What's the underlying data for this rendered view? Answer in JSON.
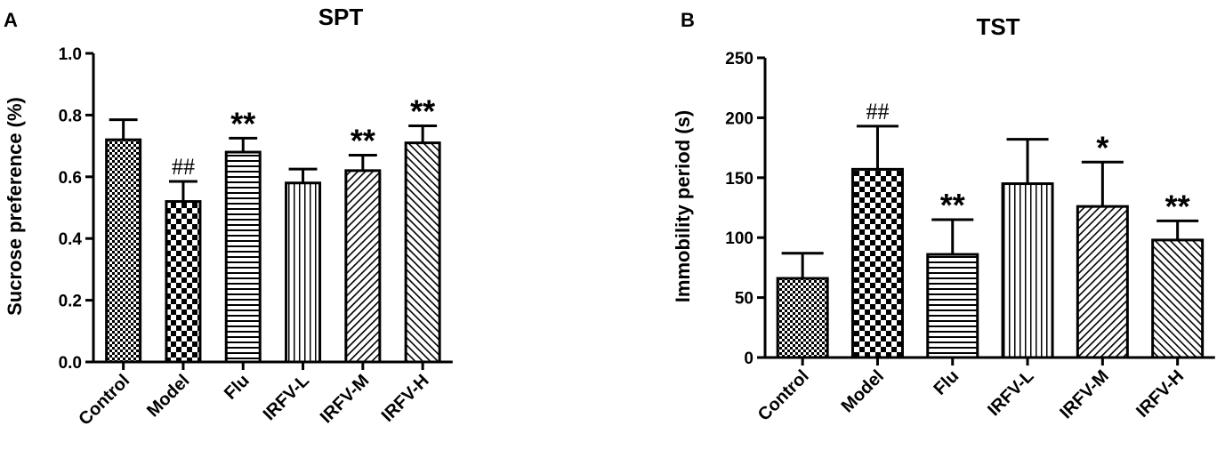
{
  "chart_data": [
    {
      "type": "bar",
      "panel": "A",
      "title": "SPT",
      "ylabel": "Sucrose   preference (%)",
      "xlabel": "",
      "ylim": [
        0,
        1.0
      ],
      "yticks": [
        "0.0",
        "0.2",
        "0.4",
        "0.6",
        "0.8",
        "1.0"
      ],
      "categories": [
        "Control",
        "Model",
        "Flu",
        "IRFV-L",
        "IRFV-M",
        "IRFV-H"
      ],
      "values": [
        0.72,
        0.52,
        0.68,
        0.58,
        0.62,
        0.71
      ],
      "errors": [
        0.065,
        0.065,
        0.045,
        0.045,
        0.05,
        0.055
      ],
      "patterns": [
        "fine-check",
        "checker",
        "horizontal-lines",
        "vertical-lines",
        "diagonal-up",
        "diagonal-down"
      ],
      "annotations": [
        "",
        "##",
        "**",
        "",
        "**",
        "**"
      ],
      "grid": false
    },
    {
      "type": "bar",
      "panel": "B",
      "title": "TST",
      "ylabel": "Immobility period (s)",
      "xlabel": "",
      "ylim": [
        0,
        250
      ],
      "yticks": [
        "0",
        "50",
        "100",
        "150",
        "200",
        "250"
      ],
      "categories": [
        "Control",
        "Model",
        "Flu",
        "IRFV-L",
        "IRFV-M",
        "IRFV-H"
      ],
      "values": [
        66,
        157,
        86,
        145,
        126,
        98
      ],
      "errors": [
        21,
        36,
        29,
        37,
        37,
        16
      ],
      "patterns": [
        "fine-check",
        "checker",
        "horizontal-lines",
        "vertical-lines",
        "diagonal-up",
        "diagonal-down"
      ],
      "annotations": [
        "",
        "##",
        "**",
        "",
        "*",
        "**"
      ],
      "grid": false
    }
  ]
}
